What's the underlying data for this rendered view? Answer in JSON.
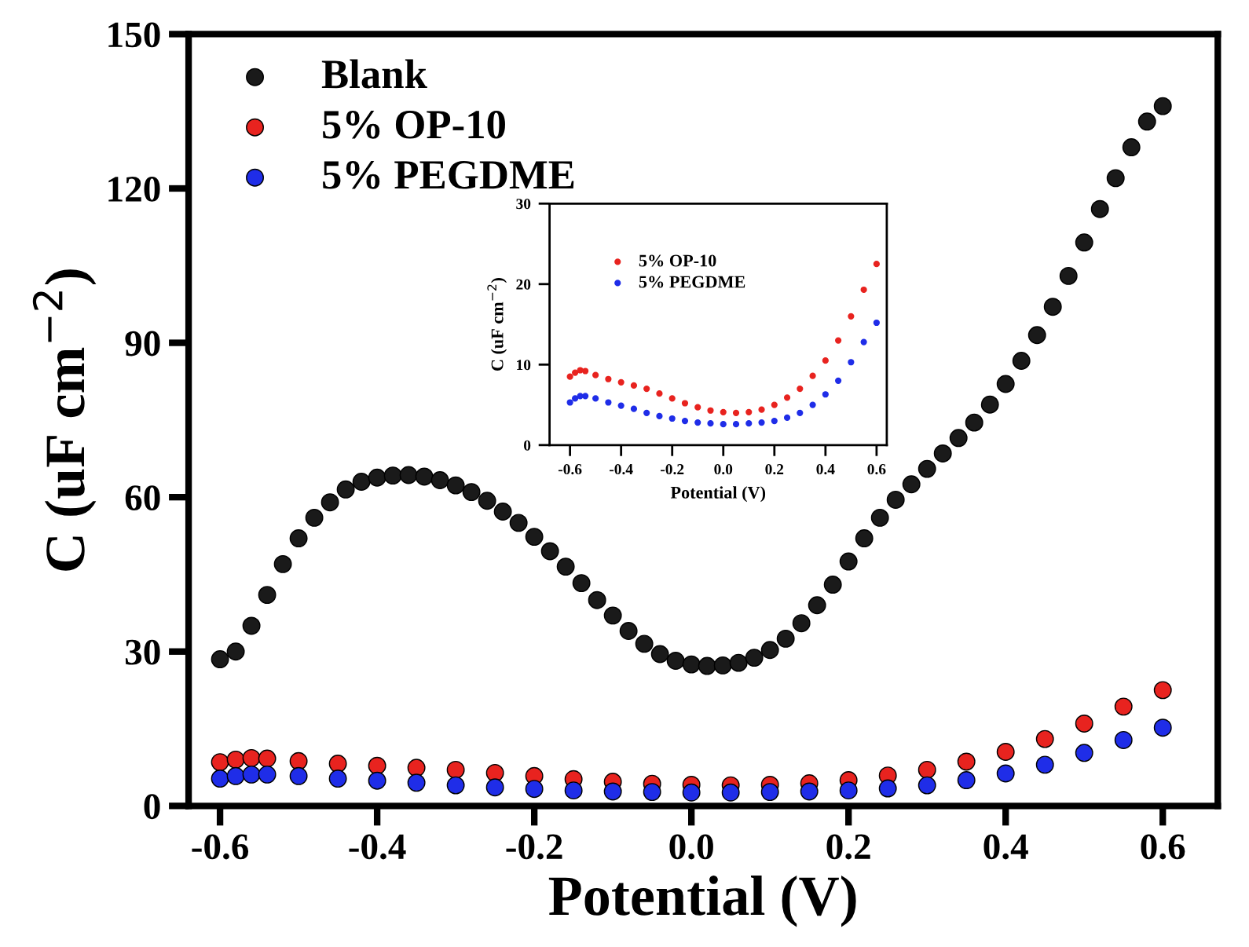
{
  "chart_data": [
    {
      "type": "scatter",
      "xlabel": "Potential (V)",
      "ylabel": "C (uF cm$^{−2}$)",
      "xlim": [
        -0.64,
        0.67
      ],
      "ylim": [
        0,
        150
      ],
      "xticks": [
        -0.6,
        -0.4,
        -0.2,
        {
          "value": 0,
          "label": "0.0"
        },
        0.2,
        0.4,
        0.6
      ],
      "yticks": [
        0,
        30,
        60,
        90,
        120,
        150
      ],
      "marker": "circle",
      "legend": "top left",
      "series": [
        {
          "name": "Blank",
          "color": "#1a1a1a",
          "x": [
            -0.6,
            -0.58,
            -0.56,
            -0.54,
            -0.52,
            -0.5,
            -0.48,
            -0.46,
            -0.44,
            -0.42,
            -0.4,
            -0.38,
            -0.36,
            -0.34,
            -0.32,
            -0.3,
            -0.28,
            -0.26,
            -0.24,
            -0.22,
            -0.2,
            -0.18,
            -0.16,
            -0.14,
            -0.12,
            -0.1,
            -0.08,
            -0.06,
            -0.04,
            -0.02,
            0,
            0.02,
            0.04,
            0.06,
            0.08,
            0.1,
            0.12,
            0.14,
            0.16,
            0.18,
            0.2,
            0.22,
            0.24,
            0.26,
            0.28,
            0.3,
            0.32,
            0.34,
            0.36,
            0.38,
            0.4,
            0.42,
            0.44,
            0.46,
            0.48,
            0.5,
            0.52,
            0.54,
            0.56,
            0.58,
            0.6
          ],
          "values": [
            28.5,
            30,
            35,
            41,
            47,
            52,
            56,
            59,
            61.5,
            63,
            63.8,
            64.2,
            64.3,
            64,
            63.3,
            62.3,
            61,
            59.3,
            57.2,
            55,
            52.3,
            49.5,
            46.5,
            43.3,
            40,
            37,
            34,
            31.5,
            29.5,
            28.2,
            27.5,
            27.2,
            27.3,
            27.8,
            28.8,
            30.3,
            32.5,
            35.5,
            39,
            43,
            47.5,
            52,
            56,
            59.5,
            62.5,
            65.5,
            68.5,
            71.5,
            74.5,
            78,
            82,
            86.5,
            91.5,
            97,
            103,
            109.5,
            116,
            122,
            128,
            133,
            136
          ]
        },
        {
          "name": "5% OP-10",
          "color": "#e8231f",
          "x": [
            -0.6,
            -0.58,
            -0.56,
            -0.54,
            -0.5,
            -0.45,
            -0.4,
            -0.35,
            -0.3,
            -0.25,
            -0.2,
            -0.15,
            -0.1,
            -0.05,
            0,
            0.05,
            0.1,
            0.15,
            0.2,
            0.25,
            0.3,
            0.35,
            0.4,
            0.45,
            0.5,
            0.55,
            0.6
          ],
          "values": [
            8.5,
            9.0,
            9.3,
            9.2,
            8.7,
            8.2,
            7.8,
            7.4,
            7.0,
            6.4,
            5.8,
            5.2,
            4.7,
            4.3,
            4.1,
            4.0,
            4.1,
            4.4,
            5.0,
            5.9,
            7.0,
            8.6,
            10.5,
            13,
            16,
            19.3,
            22.5
          ]
        },
        {
          "name": "5% PEGDME",
          "color": "#1f2de8",
          "x": [
            -0.6,
            -0.58,
            -0.56,
            -0.54,
            -0.5,
            -0.45,
            -0.4,
            -0.35,
            -0.3,
            -0.25,
            -0.2,
            -0.15,
            -0.1,
            -0.05,
            0,
            0.05,
            0.1,
            0.15,
            0.2,
            0.25,
            0.3,
            0.35,
            0.4,
            0.45,
            0.5,
            0.55,
            0.6
          ],
          "values": [
            5.3,
            5.8,
            6.1,
            6.1,
            5.8,
            5.3,
            4.9,
            4.5,
            4.0,
            3.6,
            3.3,
            3.0,
            2.8,
            2.7,
            2.6,
            2.6,
            2.7,
            2.8,
            3.0,
            3.4,
            4.0,
            5.0,
            6.3,
            8.0,
            10.3,
            12.8,
            15.2
          ]
        }
      ]
    },
    {
      "type": "scatter",
      "xlabel": "Potential (V)",
      "ylabel": "C (uF cm$^{−2}$)",
      "xlim": [
        -0.68,
        0.64
      ],
      "ylim": [
        0,
        30
      ],
      "xticks": [
        -0.6,
        -0.4,
        -0.2,
        {
          "value": 0,
          "label": "0.0"
        },
        0.2,
        0.4,
        0.6
      ],
      "yticks": [
        0,
        10,
        20,
        30
      ],
      "marker": "circle",
      "legend": "top left",
      "series": [
        {
          "name": "5% OP-10",
          "color": "#e8231f",
          "x": [
            -0.6,
            -0.58,
            -0.56,
            -0.54,
            -0.5,
            -0.45,
            -0.4,
            -0.35,
            -0.3,
            -0.25,
            -0.2,
            -0.15,
            -0.1,
            -0.05,
            0,
            0.05,
            0.1,
            0.15,
            0.2,
            0.25,
            0.3,
            0.35,
            0.4,
            0.45,
            0.5,
            0.55,
            0.6
          ],
          "values": [
            8.5,
            9.0,
            9.3,
            9.2,
            8.7,
            8.2,
            7.8,
            7.4,
            7.0,
            6.4,
            5.8,
            5.2,
            4.7,
            4.3,
            4.1,
            4.0,
            4.1,
            4.4,
            5.0,
            5.9,
            7.0,
            8.6,
            10.5,
            13,
            16,
            19.3,
            22.5
          ]
        },
        {
          "name": "5% PEGDME",
          "color": "#1f2de8",
          "x": [
            -0.6,
            -0.58,
            -0.56,
            -0.54,
            -0.5,
            -0.45,
            -0.4,
            -0.35,
            -0.3,
            -0.25,
            -0.2,
            -0.15,
            -0.1,
            -0.05,
            0,
            0.05,
            0.1,
            0.15,
            0.2,
            0.25,
            0.3,
            0.35,
            0.4,
            0.45,
            0.5,
            0.55,
            0.6
          ],
          "values": [
            5.3,
            5.8,
            6.1,
            6.1,
            5.8,
            5.3,
            4.9,
            4.5,
            4.0,
            3.6,
            3.3,
            3.0,
            2.8,
            2.7,
            2.6,
            2.6,
            2.7,
            2.8,
            3.0,
            3.4,
            4.0,
            5.0,
            6.3,
            8.0,
            10.3,
            12.8,
            15.2
          ]
        }
      ]
    }
  ]
}
